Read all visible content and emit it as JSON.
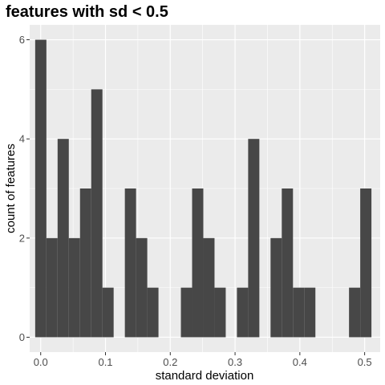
{
  "chart_data": {
    "type": "bar",
    "title": "features with sd < 0.5",
    "xlabel": "standard deviation",
    "ylabel": "count of features",
    "xlim": [
      -0.017,
      0.524
    ],
    "ylim": [
      -0.3,
      6.3
    ],
    "x_ticks": [
      0.0,
      0.1,
      0.2,
      0.3,
      0.4,
      0.5
    ],
    "x_tick_labels": [
      "0.0",
      "0.1",
      "0.2",
      "0.3",
      "0.4",
      "0.5"
    ],
    "y_ticks": [
      0,
      2,
      4,
      6
    ],
    "y_tick_labels": [
      "0",
      "2",
      "4",
      "6"
    ],
    "bin_width": 0.0173,
    "bins": [
      {
        "x_start": -0.0085,
        "x_end": 0.0088,
        "count": 6
      },
      {
        "x_start": 0.0088,
        "x_end": 0.0261,
        "count": 2
      },
      {
        "x_start": 0.0261,
        "x_end": 0.0434,
        "count": 4
      },
      {
        "x_start": 0.0434,
        "x_end": 0.0607,
        "count": 2
      },
      {
        "x_start": 0.0607,
        "x_end": 0.078,
        "count": 3
      },
      {
        "x_start": 0.078,
        "x_end": 0.0953,
        "count": 5
      },
      {
        "x_start": 0.0953,
        "x_end": 0.1126,
        "count": 1
      },
      {
        "x_start": 0.1126,
        "x_end": 0.1299,
        "count": 0
      },
      {
        "x_start": 0.1299,
        "x_end": 0.1472,
        "count": 3
      },
      {
        "x_start": 0.1472,
        "x_end": 0.1645,
        "count": 2
      },
      {
        "x_start": 0.1645,
        "x_end": 0.1818,
        "count": 1
      },
      {
        "x_start": 0.1818,
        "x_end": 0.1991,
        "count": 0
      },
      {
        "x_start": 0.1991,
        "x_end": 0.2164,
        "count": 0
      },
      {
        "x_start": 0.2164,
        "x_end": 0.2337,
        "count": 1
      },
      {
        "x_start": 0.2337,
        "x_end": 0.251,
        "count": 3
      },
      {
        "x_start": 0.251,
        "x_end": 0.2683,
        "count": 2
      },
      {
        "x_start": 0.2683,
        "x_end": 0.2856,
        "count": 1
      },
      {
        "x_start": 0.2856,
        "x_end": 0.3029,
        "count": 0
      },
      {
        "x_start": 0.3029,
        "x_end": 0.3202,
        "count": 1
      },
      {
        "x_start": 0.3202,
        "x_end": 0.3375,
        "count": 4
      },
      {
        "x_start": 0.3375,
        "x_end": 0.3548,
        "count": 0
      },
      {
        "x_start": 0.3548,
        "x_end": 0.3721,
        "count": 2
      },
      {
        "x_start": 0.3721,
        "x_end": 0.3894,
        "count": 3
      },
      {
        "x_start": 0.3894,
        "x_end": 0.4067,
        "count": 1
      },
      {
        "x_start": 0.4067,
        "x_end": 0.424,
        "count": 1
      },
      {
        "x_start": 0.424,
        "x_end": 0.4413,
        "count": 0
      },
      {
        "x_start": 0.4413,
        "x_end": 0.4586,
        "count": 0
      },
      {
        "x_start": 0.4586,
        "x_end": 0.4759,
        "count": 0
      },
      {
        "x_start": 0.4759,
        "x_end": 0.4932,
        "count": 1
      },
      {
        "x_start": 0.4932,
        "x_end": 0.5105,
        "count": 3
      }
    ],
    "grid": true,
    "legend": "none",
    "colors": {
      "panel_background": "#ebebeb",
      "grid_major": "#ffffff",
      "bar_fill": "#474747",
      "tick_text": "#4d4d4d",
      "tick_mark": "#333333"
    }
  }
}
